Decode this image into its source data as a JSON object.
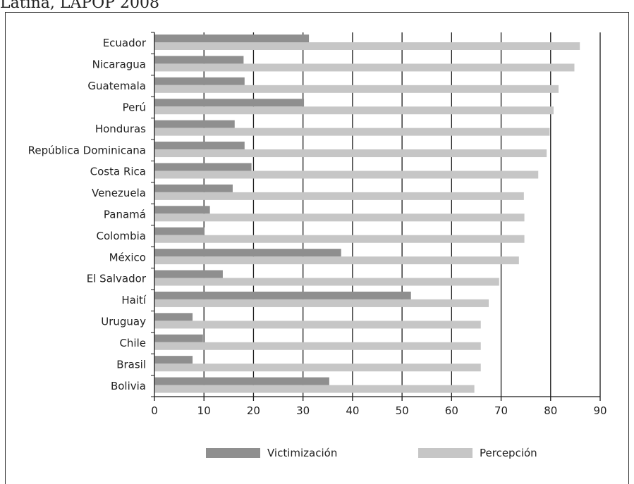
{
  "page": {
    "title_fragment": "Latina, LAPOP 2008"
  },
  "colors": {
    "victimizacion": "#8f8f8f",
    "percepcion": "#c6c6c6",
    "grid": "#1a1a1a",
    "axis_text": "#222222"
  },
  "legend": {
    "victimizacion_label": "Victimización",
    "percepcion_label": "Percepción"
  },
  "chart_data": {
    "type": "bar",
    "orientation": "horizontal",
    "title": "",
    "xlabel": "",
    "ylabel": "",
    "xlim": [
      0,
      90
    ],
    "xticks": [
      0,
      10,
      20,
      30,
      40,
      50,
      60,
      70,
      80,
      90
    ],
    "grid": "vertical",
    "legend_position": "bottom",
    "categories": [
      "Ecuador",
      "Nicaragua",
      "Guatemala",
      "Perú",
      "Honduras",
      "República Dominicana",
      "Costa Rica",
      "Venezuela",
      "Panamá",
      "Colombia",
      "México",
      "El Salvador",
      "Haití",
      "Uruguay",
      "Chile",
      "Brasil",
      "Bolivia"
    ],
    "series": [
      {
        "name": "Victimización",
        "values": [
          31.2,
          18.0,
          18.2,
          30.2,
          16.2,
          18.2,
          19.6,
          15.8,
          11.2,
          10.1,
          37.7,
          13.8,
          51.8,
          7.7,
          9.8,
          7.7,
          35.3
        ]
      },
      {
        "name": "Percepción",
        "values": [
          85.9,
          84.8,
          81.6,
          80.6,
          79.8,
          79.2,
          77.5,
          74.6,
          74.7,
          74.7,
          73.6,
          69.6,
          67.5,
          65.9,
          65.9,
          65.9,
          64.6
        ]
      }
    ]
  }
}
